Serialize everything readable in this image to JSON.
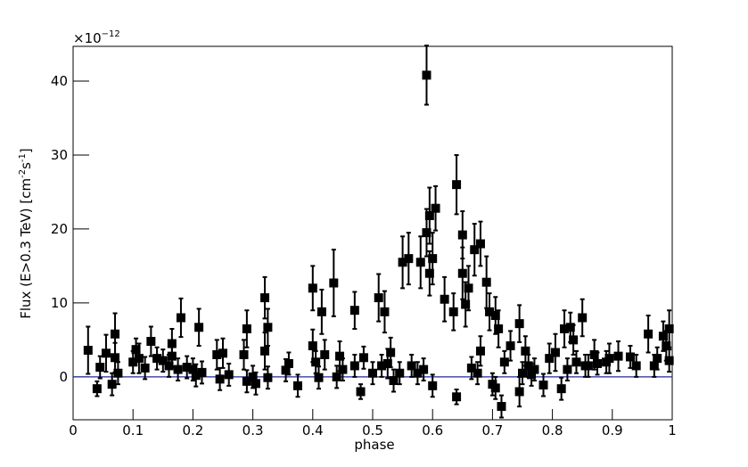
{
  "chart_data": {
    "type": "scatter-error",
    "xlabel": "phase",
    "ylabel_parts": [
      "Flux (E>0.3 TeV) [cm",
      "-2",
      "s",
      "-1",
      "]"
    ],
    "multiplier_base": "×10",
    "multiplier_exp": "−12",
    "xlim": [
      0,
      1
    ],
    "ylim": [
      -5.8,
      44.7
    ],
    "xticks": [
      0,
      0.1,
      0.2,
      0.3,
      0.4,
      0.5,
      0.6,
      0.7,
      0.8,
      0.9,
      1
    ],
    "yticks": [
      0,
      10,
      20,
      30,
      40
    ],
    "color": "#000000",
    "reference_line": {
      "y": 0,
      "color": "#1f2a9c"
    },
    "x": [
      0.025,
      0.04,
      0.045,
      0.055,
      0.065,
      0.07,
      0.07,
      0.075,
      0.1,
      0.105,
      0.11,
      0.12,
      0.13,
      0.14,
      0.15,
      0.16,
      0.165,
      0.165,
      0.175,
      0.18,
      0.19,
      0.2,
      0.205,
      0.21,
      0.215,
      0.24,
      0.245,
      0.25,
      0.26,
      0.285,
      0.29,
      0.29,
      0.3,
      0.305,
      0.32,
      0.32,
      0.325,
      0.325,
      0.355,
      0.36,
      0.375,
      0.4,
      0.4,
      0.405,
      0.41,
      0.415,
      0.42,
      0.435,
      0.44,
      0.445,
      0.45,
      0.47,
      0.47,
      0.48,
      0.485,
      0.5,
      0.51,
      0.515,
      0.52,
      0.525,
      0.53,
      0.535,
      0.545,
      0.55,
      0.56,
      0.565,
      0.575,
      0.58,
      0.585,
      0.59,
      0.59,
      0.595,
      0.595,
      0.6,
      0.6,
      0.605,
      0.62,
      0.635,
      0.64,
      0.64,
      0.65,
      0.65,
      0.655,
      0.66,
      0.665,
      0.67,
      0.675,
      0.68,
      0.68,
      0.69,
      0.695,
      0.7,
      0.705,
      0.705,
      0.71,
      0.715,
      0.72,
      0.73,
      0.745,
      0.745,
      0.75,
      0.755,
      0.76,
      0.765,
      0.77,
      0.785,
      0.795,
      0.805,
      0.815,
      0.82,
      0.825,
      0.83,
      0.835,
      0.84,
      0.85,
      0.855,
      0.86,
      0.87,
      0.875,
      0.89,
      0.895,
      0.91,
      0.93,
      0.94,
      0.96,
      0.97,
      0.975,
      0.985,
      0.99,
      0.995,
      0.995
    ],
    "values": [
      3.6,
      -1.6,
      1.3,
      3.2,
      -1.0,
      5.8,
      2.6,
      0.5,
      2.0,
      3.7,
      2.5,
      1.2,
      4.8,
      2.5,
      2.2,
      1.5,
      4.5,
      2.8,
      1.0,
      8.0,
      1.3,
      1.0,
      0.2,
      6.7,
      0.6,
      3.0,
      -0.3,
      3.2,
      0.3,
      3.0,
      6.5,
      -0.6,
      0.0,
      -0.9,
      10.7,
      3.5,
      6.7,
      -0.1,
      0.9,
      1.8,
      -1.2,
      12.0,
      4.2,
      2.0,
      -0.1,
      8.8,
      3.0,
      12.7,
      0.0,
      2.8,
      1.0,
      9.0,
      1.5,
      -2.0,
      2.6,
      0.5,
      10.7,
      1.5,
      8.8,
      1.8,
      3.3,
      -0.5,
      0.5,
      15.5,
      16.0,
      1.5,
      0.5,
      15.5,
      1.0,
      19.5,
      40.8,
      14.0,
      21.8,
      16.0,
      -1.2,
      22.8,
      10.5,
      8.8,
      26.0,
      -2.7,
      14.0,
      19.2,
      9.8,
      12.0,
      1.2,
      17.2,
      0.5,
      18.0,
      3.5,
      12.8,
      8.8,
      -1.0,
      8.3,
      -1.5,
      6.5,
      -4.0,
      2.0,
      4.2,
      7.2,
      -2.0,
      0.5,
      3.5,
      1.5,
      0.3,
      1.0,
      -1.1,
      2.5,
      3.3,
      -1.6,
      6.5,
      1.0,
      6.7,
      5.0,
      2.0,
      8.0,
      1.5,
      1.5,
      3.0,
      1.8,
      2.0,
      2.5,
      2.8,
      2.7,
      1.5,
      5.8,
      1.5,
      2.5,
      5.5,
      4.2,
      6.5,
      2.2
    ],
    "errors": [
      3.2,
      1.0,
      1.5,
      2.5,
      1.5,
      2.8,
      2,
      1.5,
      1.5,
      1.5,
      2,
      1.5,
      2,
      1.5,
      1.5,
      1.5,
      2,
      1.5,
      1.5,
      2.6,
      1.5,
      1.5,
      1.5,
      2.5,
      1.5,
      2,
      1.5,
      2,
      1.5,
      2,
      2.5,
      1.5,
      1.5,
      1.5,
      2.8,
      2.5,
      2.5,
      1.5,
      1.5,
      1.5,
      1.5,
      3,
      2.2,
      1.5,
      1.5,
      3,
      2,
      4.5,
      1.5,
      2,
      1.5,
      2.5,
      1.5,
      1.0,
      1.5,
      1.5,
      3.2,
      1.5,
      2.8,
      2,
      2,
      1.5,
      1.5,
      3.5,
      3.5,
      1.5,
      1.5,
      3.5,
      1.5,
      3.2,
      4,
      3,
      3.8,
      3.5,
      1.5,
      3,
      3,
      2.5,
      4,
      1,
      3.5,
      3.2,
      3,
      3,
      1.5,
      3.5,
      1.5,
      3,
      2,
      3.5,
      2.5,
      1.5,
      2.5,
      1.5,
      2.5,
      1.5,
      1.5,
      2,
      2.5,
      2,
      1.5,
      2,
      1.5,
      1.5,
      1.5,
      1.5,
      2,
      2.5,
      1.5,
      2.5,
      1.5,
      2,
      2,
      1.5,
      2.5,
      1.5,
      1.5,
      2,
      1.5,
      1.5,
      2,
      2,
      1.5,
      1.5,
      2.5,
      1.5,
      1.5,
      2,
      2,
      2.5,
      1.5
    ]
  }
}
